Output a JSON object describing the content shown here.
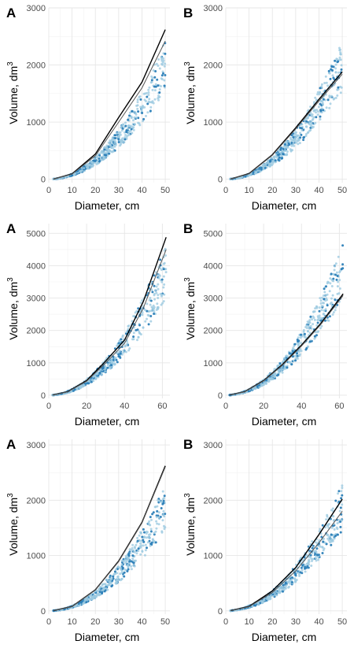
{
  "colors": {
    "point_light": "#9ecae1",
    "point_dark": "#2c7fb8",
    "fit_curve": "#000000",
    "ref_curve": "#555555",
    "grid": "#e6e6e6"
  },
  "chart_data": [
    {
      "type": "scatter",
      "panel_label": "A",
      "xlabel": "Diameter, cm",
      "ylabel": "Volume, dm",
      "ylabel_superscript": "3",
      "xlim": [
        0,
        52
      ],
      "ylim": [
        -60,
        3000
      ],
      "x_ticks": [
        0,
        10,
        20,
        30,
        40,
        50
      ],
      "y_ticks": [
        0,
        1000,
        2000,
        3000
      ],
      "grid": true,
      "scatter_summary": {
        "x_range": [
          2,
          50
        ],
        "trend_coef": 0.8,
        "trend_exp": 2.0
      },
      "series": [
        {
          "x": [
            2,
            10,
            20,
            30,
            40,
            50
          ],
          "y": [
            3,
            95,
            440,
            1080,
            1700,
            2620
          ]
        },
        {
          "x": [
            2,
            10,
            20,
            30,
            40,
            50
          ],
          "y": [
            3,
            90,
            410,
            1000,
            1600,
            2420
          ]
        }
      ]
    },
    {
      "type": "scatter",
      "panel_label": "B",
      "xlabel": "Diameter, cm",
      "ylabel": "Volume, dm",
      "ylabel_superscript": "3",
      "xlim": [
        0,
        52
      ],
      "ylim": [
        -60,
        3000
      ],
      "x_ticks": [
        0,
        10,
        20,
        30,
        40,
        50
      ],
      "y_ticks": [
        0,
        1000,
        2000,
        3000
      ],
      "grid": true,
      "scatter_summary": {
        "x_range": [
          2,
          50
        ],
        "trend_coef": 0.8,
        "trend_exp": 2.0
      },
      "series": [
        {
          "x": [
            2,
            10,
            20,
            30,
            40,
            50
          ],
          "y": [
            3,
            100,
            430,
            900,
            1400,
            1880
          ]
        },
        {
          "x": [
            2,
            10,
            20,
            30,
            40,
            50
          ],
          "y": [
            3,
            95,
            420,
            880,
            1370,
            1840
          ]
        }
      ]
    },
    {
      "type": "scatter",
      "panel_label": "A",
      "xlabel": "Diameter, cm",
      "ylabel": "Volume, dm",
      "ylabel_superscript": "3",
      "xlim": [
        0,
        64
      ],
      "ylim": [
        -100,
        5300
      ],
      "x_ticks": [
        0,
        20,
        40,
        60
      ],
      "y_ticks": [
        0,
        1000,
        2000,
        3000,
        4000,
        5000
      ],
      "grid": true,
      "scatter_summary": {
        "x_range": [
          2,
          62
        ],
        "trend_coef": 1.0,
        "trend_exp": 2.0
      },
      "series": [
        {
          "x": [
            2,
            10,
            20,
            30,
            40,
            50,
            62
          ],
          "y": [
            4,
            110,
            450,
            1050,
            1700,
            2900,
            4880
          ]
        },
        {
          "x": [
            2,
            10,
            20,
            30,
            40,
            50,
            62
          ],
          "y": [
            4,
            105,
            430,
            990,
            1600,
            2700,
            4500
          ]
        }
      ]
    },
    {
      "type": "scatter",
      "panel_label": "B",
      "xlabel": "Diameter, cm",
      "ylabel": "Volume, dm",
      "ylabel_superscript": "3",
      "xlim": [
        0,
        64
      ],
      "ylim": [
        -100,
        5300
      ],
      "x_ticks": [
        0,
        20,
        40,
        60
      ],
      "y_ticks": [
        0,
        1000,
        2000,
        3000,
        4000,
        5000
      ],
      "grid": true,
      "scatter_summary": {
        "x_range": [
          2,
          62
        ],
        "trend_coef": 1.0,
        "trend_exp": 2.0
      },
      "series": [
        {
          "x": [
            2,
            10,
            20,
            30,
            40,
            50,
            62
          ],
          "y": [
            4,
            110,
            450,
            950,
            1550,
            2200,
            3130
          ]
        },
        {
          "x": [
            2,
            10,
            20,
            30,
            40,
            50,
            62
          ],
          "y": [
            4,
            105,
            440,
            930,
            1520,
            2170,
            3080
          ]
        }
      ]
    },
    {
      "type": "scatter",
      "panel_label": "A",
      "xlabel": "Diameter, cm",
      "ylabel": "Volume, dm",
      "ylabel_superscript": "3",
      "xlim": [
        0,
        52
      ],
      "ylim": [
        -60,
        3100
      ],
      "x_ticks": [
        0,
        10,
        20,
        30,
        40,
        50
      ],
      "y_ticks": [
        0,
        1000,
        2000,
        3000
      ],
      "grid": true,
      "scatter_summary": {
        "x_range": [
          2,
          50
        ],
        "trend_coef": 0.75,
        "trend_exp": 2.0
      },
      "series": [
        {
          "x": [
            2,
            10,
            20,
            30,
            40,
            50
          ],
          "y": [
            3,
            80,
            380,
            900,
            1600,
            2620
          ]
        },
        {
          "x": [
            2,
            10,
            20,
            30,
            40,
            50
          ],
          "y": [
            3,
            78,
            375,
            890,
            1590,
            2600
          ]
        }
      ]
    },
    {
      "type": "scatter",
      "panel_label": "B",
      "xlabel": "Diameter, cm",
      "ylabel": "Volume, dm",
      "ylabel_superscript": "3",
      "xlim": [
        0,
        52
      ],
      "ylim": [
        -60,
        3100
      ],
      "x_ticks": [
        0,
        10,
        20,
        30,
        40,
        50
      ],
      "y_ticks": [
        0,
        1000,
        2000,
        3000
      ],
      "grid": true,
      "scatter_summary": {
        "x_range": [
          2,
          50
        ],
        "trend_coef": 0.75,
        "trend_exp": 2.0
      },
      "series": [
        {
          "x": [
            2,
            10,
            20,
            30,
            40,
            50
          ],
          "y": [
            3,
            80,
            360,
            780,
            1380,
            2020
          ]
        },
        {
          "x": [
            2,
            10,
            20,
            30,
            40,
            50
          ],
          "y": [
            3,
            75,
            330,
            720,
            1230,
            1800
          ]
        }
      ]
    }
  ]
}
